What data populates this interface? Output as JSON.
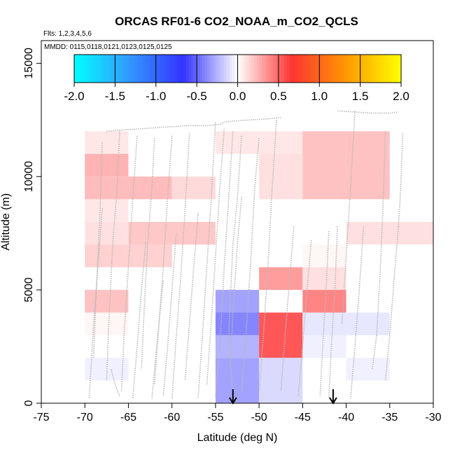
{
  "chart_data": {
    "type": "heatmap",
    "title": "ORCAS RF01-6 CO2_NOAA_m_CO2_QCLS",
    "flights_note": "Flts: 1,2,3,4,5,6",
    "dates_note": "MMDD: 0115,0118,0121,0123,0125,0125",
    "xlabel": "Latitude (deg N)",
    "ylabel": "Altitude (m)",
    "xlim": [
      -75,
      -30
    ],
    "ylim": [
      0,
      16000
    ],
    "x_ticks": [
      -75,
      -70,
      -65,
      -60,
      -55,
      -50,
      -45,
      -40,
      -35,
      -30
    ],
    "x_tick_labels": [
      "-75",
      "-70",
      "-65",
      "-60",
      "-55",
      "-50",
      "-45",
      "-40",
      "-35",
      "-30"
    ],
    "y_ticks": [
      0,
      5000,
      10000,
      15000
    ],
    "y_tick_labels": [
      "0",
      "5000",
      "10000",
      "15000"
    ],
    "colorbar": {
      "min": -2.0,
      "max": 2.0,
      "ticks": [
        -2.0,
        -1.5,
        -1.0,
        -0.5,
        0.0,
        0.5,
        1.0,
        1.5,
        2.0
      ],
      "tick_labels": [
        "-2.0",
        "-1.5",
        "-1.0",
        "-0.5",
        "0.0",
        "0.5",
        "1.0",
        "1.5",
        "2.0"
      ],
      "colors": [
        "#00ffff",
        "#3399ff",
        "#3333ff",
        "#ffffff",
        "#ff3333",
        "#ff9900",
        "#ffff00"
      ]
    },
    "cells": [
      {
        "lat0": -70,
        "lat1": -65,
        "alt0": 11000,
        "alt1": 12000,
        "value": 0.08
      },
      {
        "lat0": -70,
        "lat1": -65,
        "alt0": 10000,
        "alt1": 11000,
        "value": 0.25
      },
      {
        "lat0": -70,
        "lat1": -60,
        "alt0": 9000,
        "alt1": 10000,
        "value": 0.22
      },
      {
        "lat0": -60,
        "lat1": -55,
        "alt0": 9000,
        "alt1": 10000,
        "value": 0.12
      },
      {
        "lat0": -55,
        "lat1": -50,
        "alt0": 11000,
        "alt1": 12000,
        "value": 0.08
      },
      {
        "lat0": -50,
        "lat1": -45,
        "alt0": 11000,
        "alt1": 12000,
        "value": 0.08
      },
      {
        "lat0": -50,
        "lat1": -45,
        "alt0": 9000,
        "alt1": 11000,
        "value": 0.1
      },
      {
        "lat0": -45,
        "lat1": -40,
        "alt0": 9000,
        "alt1": 12000,
        "value": 0.2
      },
      {
        "lat0": -40,
        "lat1": -35,
        "alt0": 9000,
        "alt1": 12000,
        "value": 0.2
      },
      {
        "lat0": -70,
        "lat1": -65,
        "alt0": 8000,
        "alt1": 9000,
        "value": 0.08
      },
      {
        "lat0": -70,
        "lat1": -65,
        "alt0": 7000,
        "alt1": 8000,
        "value": 0.1
      },
      {
        "lat0": -65,
        "lat1": -55,
        "alt0": 7000,
        "alt1": 8000,
        "value": 0.18
      },
      {
        "lat0": -70,
        "lat1": -60,
        "alt0": 6000,
        "alt1": 7000,
        "value": 0.15
      },
      {
        "lat0": -40,
        "lat1": -30,
        "alt0": 7000,
        "alt1": 8000,
        "value": 0.1
      },
      {
        "lat0": -45,
        "lat1": -40,
        "alt0": 6000,
        "alt1": 7000,
        "value": 0.03
      },
      {
        "lat0": -50,
        "lat1": -45,
        "alt0": 5000,
        "alt1": 6000,
        "value": 0.32
      },
      {
        "lat0": -45,
        "lat1": -40,
        "alt0": 5000,
        "alt1": 6000,
        "value": 0.1
      },
      {
        "lat0": -45,
        "lat1": -40,
        "alt0": 4000,
        "alt1": 5000,
        "value": 0.4
      },
      {
        "lat0": -70,
        "lat1": -65,
        "alt0": 4000,
        "alt1": 5000,
        "value": 0.2
      },
      {
        "lat0": -70,
        "lat1": -65,
        "alt0": 3000,
        "alt1": 4000,
        "value": 0.03
      },
      {
        "lat0": -55,
        "lat1": -50,
        "alt0": 4000,
        "alt1": 5000,
        "value": -0.3
      },
      {
        "lat0": -55,
        "lat1": -50,
        "alt0": 3000,
        "alt1": 4000,
        "value": -0.4
      },
      {
        "lat0": -55,
        "lat1": -50,
        "alt0": 2000,
        "alt1": 3000,
        "value": -0.25
      },
      {
        "lat0": -55,
        "lat1": -50,
        "alt0": 0,
        "alt1": 2000,
        "value": -0.3
      },
      {
        "lat0": -50,
        "lat1": -45,
        "alt0": 2000,
        "alt1": 4000,
        "value": 0.55
      },
      {
        "lat0": -50,
        "lat1": -45,
        "alt0": 0,
        "alt1": 2000,
        "value": -0.12
      },
      {
        "lat0": -45,
        "lat1": -40,
        "alt0": 3000,
        "alt1": 4000,
        "value": -0.08
      },
      {
        "lat0": -40,
        "lat1": -35,
        "alt0": 3000,
        "alt1": 4000,
        "value": -0.08
      },
      {
        "lat0": -45,
        "lat1": -40,
        "alt0": 2000,
        "alt1": 3000,
        "value": -0.05
      },
      {
        "lat0": -40,
        "lat1": -35,
        "alt0": 1000,
        "alt1": 2000,
        "value": -0.05
      },
      {
        "lat0": -70,
        "lat1": -65,
        "alt0": 1000,
        "alt1": 2000,
        "value": -0.05
      }
    ],
    "arrows_lat": [
      -53,
      -41.5
    ],
    "flight_tracks": [
      [
        [
          -67.5,
          12000
        ],
        [
          -66,
          12050
        ],
        [
          -64,
          12100
        ],
        [
          -62,
          12150
        ],
        [
          -60,
          12200
        ],
        [
          -58,
          12250
        ],
        [
          -56,
          12250
        ],
        [
          -54.5,
          12300
        ]
      ],
      [
        [
          -54.5,
          12300
        ],
        [
          -54,
          12400
        ],
        [
          -53,
          12450
        ],
        [
          -51,
          12500
        ],
        [
          -49,
          12550
        ],
        [
          -47.5,
          12600
        ]
      ],
      [
        [
          -41,
          12900
        ],
        [
          -39,
          12850
        ],
        [
          -37,
          12800
        ],
        [
          -35,
          12800
        ],
        [
          -34,
          12850
        ]
      ],
      [
        [
          -55,
          12400
        ],
        [
          -55.5,
          9000
        ],
        [
          -56,
          6000
        ],
        [
          -56.5,
          3000
        ],
        [
          -57,
          200
        ]
      ],
      [
        [
          -54,
          12100
        ],
        [
          -54.5,
          9500
        ],
        [
          -55,
          6500
        ],
        [
          -55.5,
          3500
        ],
        [
          -56,
          800
        ]
      ],
      [
        [
          -53,
          12000
        ],
        [
          -53.5,
          9000
        ],
        [
          -54,
          6000
        ],
        [
          -54.5,
          2500
        ],
        [
          -55,
          300
        ]
      ],
      [
        [
          -52,
          11800
        ],
        [
          -52.5,
          9000
        ],
        [
          -53,
          7000
        ],
        [
          -53.5,
          3000
        ],
        [
          -53,
          200
        ]
      ],
      [
        [
          -68,
          11500
        ],
        [
          -68.2,
          9000
        ],
        [
          -68.5,
          6500
        ],
        [
          -68.8,
          4000
        ],
        [
          -69,
          2000
        ]
      ],
      [
        [
          -66,
          12000
        ],
        [
          -66.3,
          9500
        ],
        [
          -66.8,
          7000
        ],
        [
          -67.2,
          4000
        ],
        [
          -67.5,
          1000
        ]
      ],
      [
        [
          -64,
          11800
        ],
        [
          -64.5,
          9000
        ],
        [
          -65,
          6000
        ],
        [
          -65.5,
          3000
        ],
        [
          -65.8,
          500
        ]
      ],
      [
        [
          -62,
          11700
        ],
        [
          -62.3,
          9500
        ],
        [
          -62.8,
          7000
        ],
        [
          -63.2,
          4000
        ],
        [
          -63.5,
          1500
        ]
      ],
      [
        [
          -60,
          11800
        ],
        [
          -60.5,
          9000
        ],
        [
          -61,
          6000
        ],
        [
          -61.5,
          3500
        ],
        [
          -62,
          800
        ]
      ],
      [
        [
          -58,
          11900
        ],
        [
          -58.5,
          8500
        ],
        [
          -59,
          5500
        ],
        [
          -59.5,
          3000
        ],
        [
          -60,
          200
        ]
      ],
      [
        [
          -57,
          8400
        ],
        [
          -57.5,
          6000
        ],
        [
          -58,
          3500
        ],
        [
          -58.5,
          1000
        ]
      ],
      [
        [
          -68,
          8600
        ],
        [
          -68.5,
          6000
        ],
        [
          -69,
          3500
        ],
        [
          -69.5,
          200
        ]
      ],
      [
        [
          -63,
          7100
        ],
        [
          -63.5,
          5000
        ],
        [
          -64,
          2500
        ],
        [
          -64.5,
          200
        ]
      ],
      [
        [
          -61,
          5400
        ],
        [
          -61.5,
          3500
        ],
        [
          -62,
          1500
        ],
        [
          -62.3,
          200
        ]
      ],
      [
        [
          -59.5,
          7500
        ],
        [
          -60,
          5000
        ],
        [
          -60.5,
          2500
        ],
        [
          -61,
          300
        ]
      ],
      [
        [
          -52,
          9100
        ],
        [
          -52.5,
          7000
        ],
        [
          -53,
          4000
        ],
        [
          -53.3,
          1500
        ]
      ],
      [
        [
          -50,
          11700
        ],
        [
          -50.5,
          9500
        ],
        [
          -51,
          6000
        ],
        [
          -51.5,
          3000
        ],
        [
          -52,
          500
        ]
      ],
      [
        [
          -48,
          12500
        ],
        [
          -48.5,
          9500
        ],
        [
          -49,
          6000
        ],
        [
          -49.5,
          3000
        ],
        [
          -50,
          500
        ]
      ],
      [
        [
          -46,
          7800
        ],
        [
          -46.5,
          5500
        ],
        [
          -47,
          3000
        ],
        [
          -47.5,
          500
        ]
      ],
      [
        [
          -44,
          7200
        ],
        [
          -44.5,
          5000
        ],
        [
          -45,
          2500
        ],
        [
          -45.5,
          300
        ]
      ],
      [
        [
          -42,
          7600
        ],
        [
          -42.3,
          5000
        ],
        [
          -42.7,
          2500
        ],
        [
          -43,
          300
        ]
      ],
      [
        [
          -41,
          7800
        ],
        [
          -41.3,
          5000
        ],
        [
          -41.7,
          2500
        ],
        [
          -42,
          200
        ]
      ],
      [
        [
          -38,
          7800
        ],
        [
          -38.5,
          5000
        ],
        [
          -39,
          2500
        ],
        [
          -39.5,
          200
        ]
      ],
      [
        [
          -35.5,
          12000
        ],
        [
          -35.7,
          9500
        ],
        [
          -36,
          6500
        ],
        [
          -36.5,
          3000
        ],
        [
          -37,
          1500
        ]
      ],
      [
        [
          -34,
          7800
        ],
        [
          -34.5,
          5500
        ],
        [
          -35,
          3000
        ],
        [
          -35.5,
          1000
        ]
      ],
      [
        [
          -33.5,
          11900
        ],
        [
          -33.8,
          9000
        ],
        [
          -34,
          7800
        ]
      ],
      [
        [
          -39,
          12900
        ],
        [
          -39.5,
          9500
        ],
        [
          -40,
          6500
        ],
        [
          -40.5,
          3500
        ]
      ],
      [
        [
          -67,
          1500
        ],
        [
          -66.5,
          800
        ],
        [
          -66,
          300
        ]
      ]
    ]
  }
}
